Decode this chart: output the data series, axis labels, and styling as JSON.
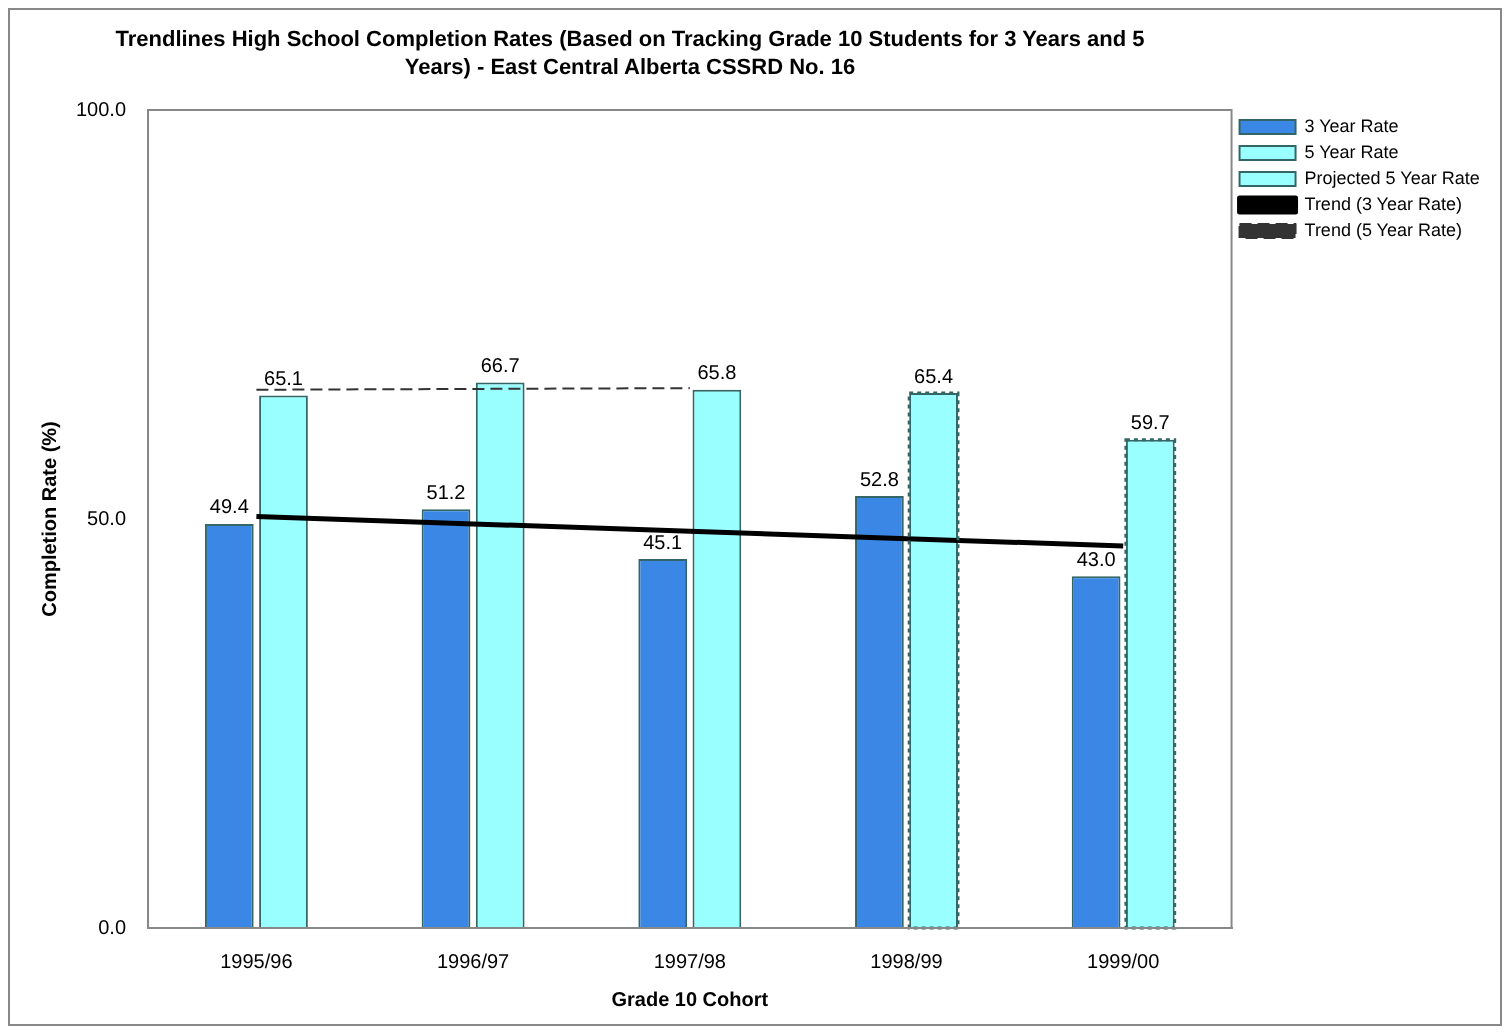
{
  "chart_data": {
    "type": "bar",
    "title": "Trendlines High School Completion Rates (Based on Tracking Grade 10 Students for 3 Years and 5 Years) - East Central Alberta CSSRD No. 16",
    "xlabel": "Grade 10 Cohort",
    "ylabel": "Completion Rate (%)",
    "categories": [
      "1995/96",
      "1996/97",
      "1997/98",
      "1998/99",
      "1999/00"
    ],
    "ylim": [
      0,
      100
    ],
    "yticks": [
      {
        "value": 0,
        "label": "0.0"
      },
      {
        "value": 50,
        "label": "50.0"
      },
      {
        "value": 100,
        "label": "100.0"
      }
    ],
    "grid": false,
    "legend": "top right",
    "series": [
      {
        "name": "3 Year Rate",
        "color": "#3a87e6",
        "values": [
          49.4,
          51.2,
          45.1,
          52.8,
          43.0
        ],
        "value_labels": [
          "49.4",
          "51.2",
          "45.1",
          "52.8",
          "43.0"
        ]
      },
      {
        "name": "5 Year Rate",
        "color": "#99ffff",
        "values": [
          65.1,
          66.7,
          65.8,
          null,
          null
        ],
        "value_labels": [
          "65.1",
          "66.7",
          "65.8",
          null,
          null
        ]
      },
      {
        "name": "Projected 5 Year Rate",
        "color": "#99ffff",
        "line_style": "dotted",
        "values": [
          null,
          null,
          null,
          65.4,
          59.7
        ],
        "value_labels": [
          null,
          null,
          null,
          "65.4",
          "59.7"
        ]
      },
      {
        "name": "Trend (3 Year Rate)",
        "type": "line",
        "color": "#000000",
        "line_style": "solid",
        "values": [
          50.3,
          49.4,
          48.5,
          47.6,
          46.7
        ]
      },
      {
        "name": "Trend (5 Year Rate)",
        "type": "line",
        "color": "#333333",
        "line_style": "dashed",
        "values": [
          65.8,
          65.9,
          66.0,
          null,
          null
        ]
      }
    ]
  }
}
